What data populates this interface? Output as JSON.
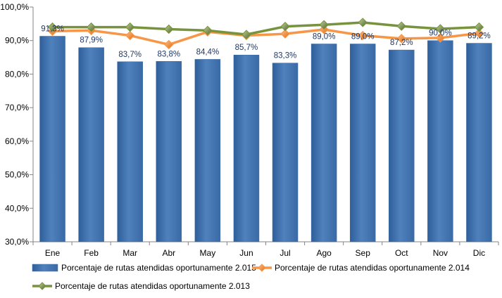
{
  "chart_data": {
    "type": "bar",
    "title": "",
    "xlabel": "",
    "ylabel": "",
    "categories": [
      "Ene",
      "Feb",
      "Mar",
      "Abr",
      "May",
      "Jun",
      "Jul",
      "Ago",
      "Sep",
      "Oct",
      "Nov",
      "Dic"
    ],
    "ylim": [
      30,
      100
    ],
    "yticks": [
      30,
      40,
      50,
      60,
      70,
      80,
      90,
      100
    ],
    "ytick_labels": [
      "30,0%",
      "40,0%",
      "50,0%",
      "60,0%",
      "70,0%",
      "80,0%",
      "90,0%",
      "100,0%"
    ],
    "grid": false,
    "legend_position": "bottom",
    "series": [
      {
        "name": "Porcentaje de rutas atendidas oportunamente 2.015",
        "type": "bar",
        "color": "#4F81BD",
        "values": [
          91.3,
          87.9,
          83.7,
          83.8,
          84.4,
          85.7,
          83.3,
          89.0,
          89.0,
          87.2,
          90.0,
          89.2
        ],
        "labels": [
          "91,3%",
          "87,9%",
          "83,7%",
          "83,8%",
          "84,4%",
          "85,7%",
          "83,3%",
          "89,0%",
          "89,0%",
          "87,2%",
          "90,0%",
          "89,2%"
        ]
      },
      {
        "name": "Porcentaje de rutas atendidas oportunamente 2.014",
        "type": "line",
        "marker": "diamond",
        "color": "#F79646",
        "values": [
          92.8,
          93.0,
          91.5,
          88.8,
          92.6,
          91.5,
          92.0,
          93.3,
          91.5,
          90.6,
          90.8,
          92.2
        ]
      },
      {
        "name": "Porcentaje de rutas atendidas oportunamente 2.013",
        "type": "line",
        "marker": "diamond",
        "color": "#77933C",
        "values": [
          94.0,
          94.0,
          94.0,
          93.4,
          93.0,
          91.8,
          94.2,
          94.7,
          95.4,
          94.3,
          93.5,
          94.0
        ]
      }
    ]
  }
}
